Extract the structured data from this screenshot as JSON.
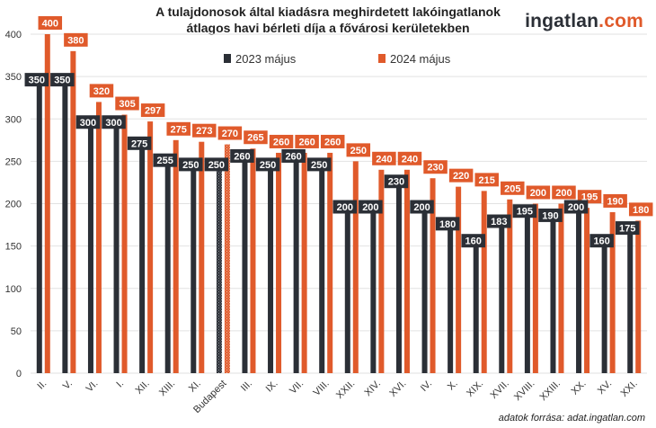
{
  "header": {
    "title_line1": "A tulajdonosok által kiadásra meghirdetett lakóingatlanok",
    "title_line2": "átlagos havi bérleti díja a fővárosi kerületekben",
    "logo_main": "ingatlan",
    "logo_suffix": ".com"
  },
  "footer": {
    "source": "adatok forrása: adat.ingatlan.com"
  },
  "colors": {
    "series_2023": "#2b2f36",
    "series_2024": "#e05a2b",
    "grid": "#e2e2e2"
  },
  "chart_data": {
    "type": "bar",
    "categories": [
      "II.",
      "V.",
      "VI.",
      "I.",
      "XII.",
      "XIII.",
      "XI.",
      "Budapest",
      "III.",
      "IX.",
      "VII.",
      "VIII.",
      "XXII.",
      "XIV.",
      "XVI.",
      "IV.",
      "X.",
      "XIX.",
      "XVII.",
      "XVIII.",
      "XXIII.",
      "XX.",
      "XV.",
      "XXI."
    ],
    "series": [
      {
        "name": "2023 május",
        "values": [
          350,
          350,
          300,
          300,
          275,
          255,
          250,
          250,
          260,
          250,
          260,
          250,
          200,
          200,
          230,
          200,
          180,
          160,
          183,
          195,
          190,
          200,
          160,
          175
        ]
      },
      {
        "name": "2024 május",
        "values": [
          400,
          380,
          320,
          305,
          297,
          275,
          273,
          270,
          265,
          260,
          260,
          260,
          250,
          240,
          240,
          230,
          220,
          215,
          205,
          200,
          200,
          195,
          190,
          180
        ]
      }
    ],
    "ylim": [
      0,
      400
    ],
    "yticks": [
      0,
      50,
      100,
      150,
      200,
      250,
      300,
      350,
      400
    ],
    "highlight_category": "Budapest",
    "grid": true,
    "legend_position": "top"
  }
}
